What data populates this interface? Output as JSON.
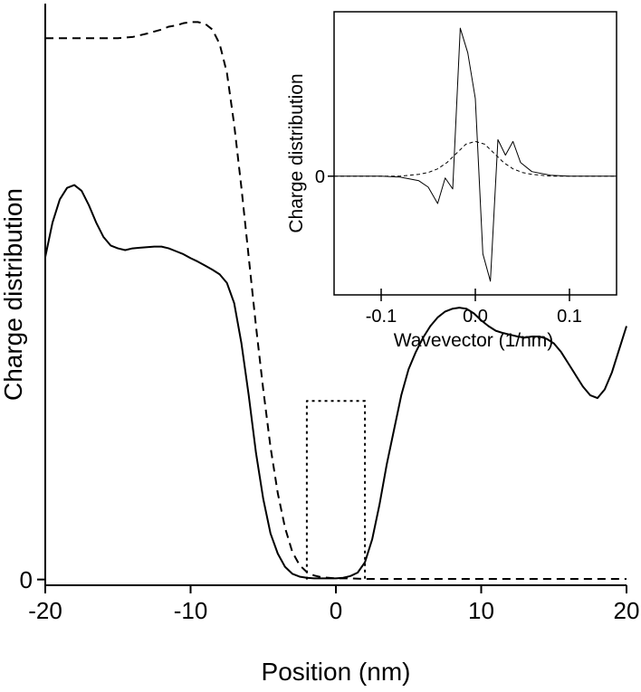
{
  "chart_data": [
    {
      "type": "line",
      "xlabel": "Position (nm)",
      "ylabel": "Charge distribution",
      "xlim": [
        -20,
        20
      ],
      "ylim": [
        -0.1,
        10.0
      ],
      "xticks": [
        -20,
        -10,
        0,
        10,
        20
      ],
      "xtick_labels": [
        "-20",
        "-10",
        "0",
        "10",
        "20"
      ],
      "yticks": [
        0
      ],
      "ytick_labels": [
        "0"
      ],
      "series": [
        {
          "name": "solid",
          "style": "solid",
          "x": [
            -20,
            -19.5,
            -19,
            -18.5,
            -18,
            -17.5,
            -17,
            -16.5,
            -16,
            -15.5,
            -15,
            -14.5,
            -14,
            -13.5,
            -13,
            -12.5,
            -12,
            -11.5,
            -11,
            -10.5,
            -10,
            -9.5,
            -9,
            -8.5,
            -8,
            -7.5,
            -7,
            -6.5,
            -6,
            -5.5,
            -5,
            -4.5,
            -4,
            -3.5,
            -3,
            -2.5,
            -2,
            -1.5,
            -1,
            -0.5,
            0,
            0.5,
            1,
            1.5,
            2,
            2.5,
            3,
            3.5,
            4,
            4.5,
            5,
            5.5,
            6,
            6.5,
            7,
            7.5,
            8,
            8.5,
            9,
            9.5,
            10,
            10.5,
            11,
            11.5,
            12,
            12.5,
            13,
            13.5,
            14,
            14.5,
            15,
            15.5,
            16,
            16.5,
            17,
            17.5,
            18,
            18.5,
            19,
            19.5,
            20
          ],
          "y": [
            5.6,
            6.2,
            6.6,
            6.8,
            6.85,
            6.75,
            6.5,
            6.2,
            5.95,
            5.8,
            5.75,
            5.72,
            5.75,
            5.76,
            5.77,
            5.78,
            5.78,
            5.75,
            5.7,
            5.65,
            5.58,
            5.52,
            5.45,
            5.38,
            5.3,
            5.15,
            4.8,
            4.1,
            3.2,
            2.2,
            1.4,
            0.8,
            0.45,
            0.22,
            0.1,
            0.05,
            0.03,
            0.02,
            0.02,
            0.02,
            0.02,
            0.03,
            0.06,
            0.12,
            0.3,
            0.7,
            1.3,
            2.0,
            2.6,
            3.2,
            3.65,
            3.95,
            4.2,
            4.4,
            4.55,
            4.65,
            4.7,
            4.72,
            4.7,
            4.62,
            4.5,
            4.4,
            4.32,
            4.28,
            4.25,
            4.22,
            4.2,
            4.22,
            4.22,
            4.18,
            4.1,
            3.95,
            3.75,
            3.55,
            3.35,
            3.2,
            3.15,
            3.3,
            3.6,
            4.0,
            4.4
          ]
        },
        {
          "name": "dashed",
          "style": "dashed",
          "x": [
            -20,
            -19,
            -18,
            -17,
            -16,
            -15,
            -14,
            -13,
            -12,
            -11.5,
            -11,
            -10.5,
            -10,
            -9.5,
            -9,
            -8.5,
            -8,
            -7.5,
            -7,
            -6.5,
            -6,
            -5.5,
            -5,
            -4.5,
            -4,
            -3.5,
            -3,
            -2.5,
            -2,
            -1.5,
            -1,
            -0.5,
            0,
            1,
            2,
            5,
            10,
            15,
            20
          ],
          "y": [
            9.4,
            9.4,
            9.4,
            9.4,
            9.4,
            9.4,
            9.42,
            9.48,
            9.55,
            9.6,
            9.62,
            9.66,
            9.68,
            9.68,
            9.65,
            9.55,
            9.3,
            8.8,
            7.9,
            6.8,
            5.6,
            4.4,
            3.3,
            2.3,
            1.5,
            0.9,
            0.48,
            0.25,
            0.13,
            0.07,
            0.04,
            0.03,
            0.02,
            0.02,
            0.01,
            0.01,
            0.01,
            0.01,
            0.01
          ]
        },
        {
          "name": "dotted",
          "style": "dotted",
          "x": [
            -2,
            -2,
            2,
            2
          ],
          "y": [
            0,
            3.1,
            3.1,
            0
          ]
        }
      ]
    },
    {
      "type": "line",
      "xlabel": "Wavevector (1/nm)",
      "ylabel": "Charge distribution",
      "xlim": [
        -0.15,
        0.15
      ],
      "ylim": [
        -1.3,
        1.8
      ],
      "xticks": [
        -0.1,
        0.0,
        0.1
      ],
      "xtick_labels": [
        "-0.1",
        "0.0",
        "0.1"
      ],
      "yticks": [
        0
      ],
      "ytick_labels": [
        "0"
      ],
      "series": [
        {
          "name": "solid",
          "style": "solid",
          "x": [
            -0.15,
            -0.1,
            -0.08,
            -0.06,
            -0.05,
            -0.04,
            -0.032,
            -0.024,
            -0.016,
            -0.008,
            0.0,
            0.008,
            0.016,
            0.024,
            0.032,
            0.04,
            0.048,
            0.06,
            0.08,
            0.1,
            0.15
          ],
          "y": [
            0.0,
            0.0,
            -0.01,
            -0.05,
            -0.12,
            -0.3,
            -0.02,
            -0.14,
            1.62,
            1.35,
            0.85,
            -0.85,
            -1.15,
            0.4,
            0.23,
            0.38,
            0.15,
            0.05,
            0.01,
            0.0,
            0.0
          ]
        },
        {
          "name": "dashed",
          "style": "dashed",
          "x": [
            -0.15,
            -0.1,
            -0.08,
            -0.06,
            -0.05,
            -0.04,
            -0.03,
            -0.02,
            -0.01,
            0.0,
            0.01,
            0.02,
            0.03,
            0.04,
            0.05,
            0.06,
            0.08,
            0.1,
            0.15
          ],
          "y": [
            0.0,
            0.0,
            0.0,
            0.02,
            0.04,
            0.08,
            0.15,
            0.25,
            0.35,
            0.38,
            0.35,
            0.25,
            0.15,
            0.08,
            0.04,
            0.02,
            0.0,
            0.0,
            0.0
          ]
        }
      ]
    }
  ]
}
